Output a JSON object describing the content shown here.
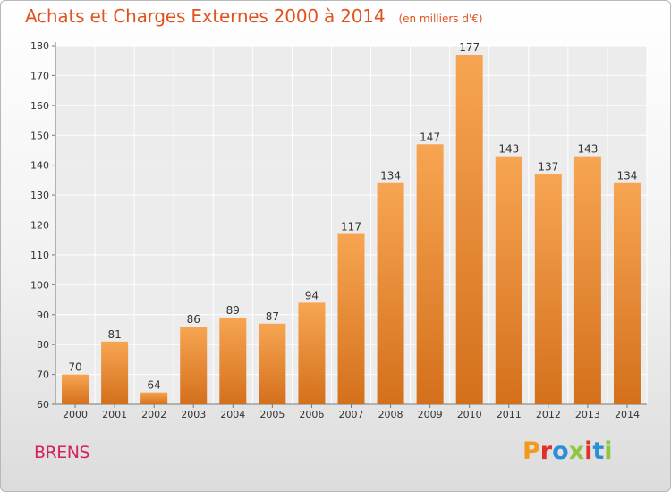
{
  "header": {
    "title": "Achats et Charges Externes 2000 à 2014",
    "unit": "(en milliers d'€)"
  },
  "footer": {
    "town": "BRENS",
    "brand": "Proxiti",
    "brand_colors": [
      "#f39a1e",
      "#e0302b",
      "#2c8fd6",
      "#8dc641",
      "#e0302b",
      "#2c8fd6",
      "#8dc641"
    ]
  },
  "chart_data": {
    "type": "bar",
    "title": "Achats et Charges Externes 2000 à 2014",
    "categories": [
      "2000",
      "2001",
      "2002",
      "2003",
      "2004",
      "2005",
      "2006",
      "2007",
      "2008",
      "2009",
      "2010",
      "2011",
      "2012",
      "2013",
      "2014"
    ],
    "values": [
      70,
      81,
      64,
      86,
      89,
      87,
      94,
      117,
      134,
      147,
      177,
      143,
      137,
      143,
      134
    ],
    "ylim": [
      60,
      180
    ],
    "yticks": [
      60,
      70,
      80,
      90,
      100,
      110,
      120,
      130,
      140,
      150,
      160,
      170,
      180
    ],
    "grid": true,
    "bar_color_top": "#f7a552",
    "bar_color_bottom": "#d4701c"
  }
}
